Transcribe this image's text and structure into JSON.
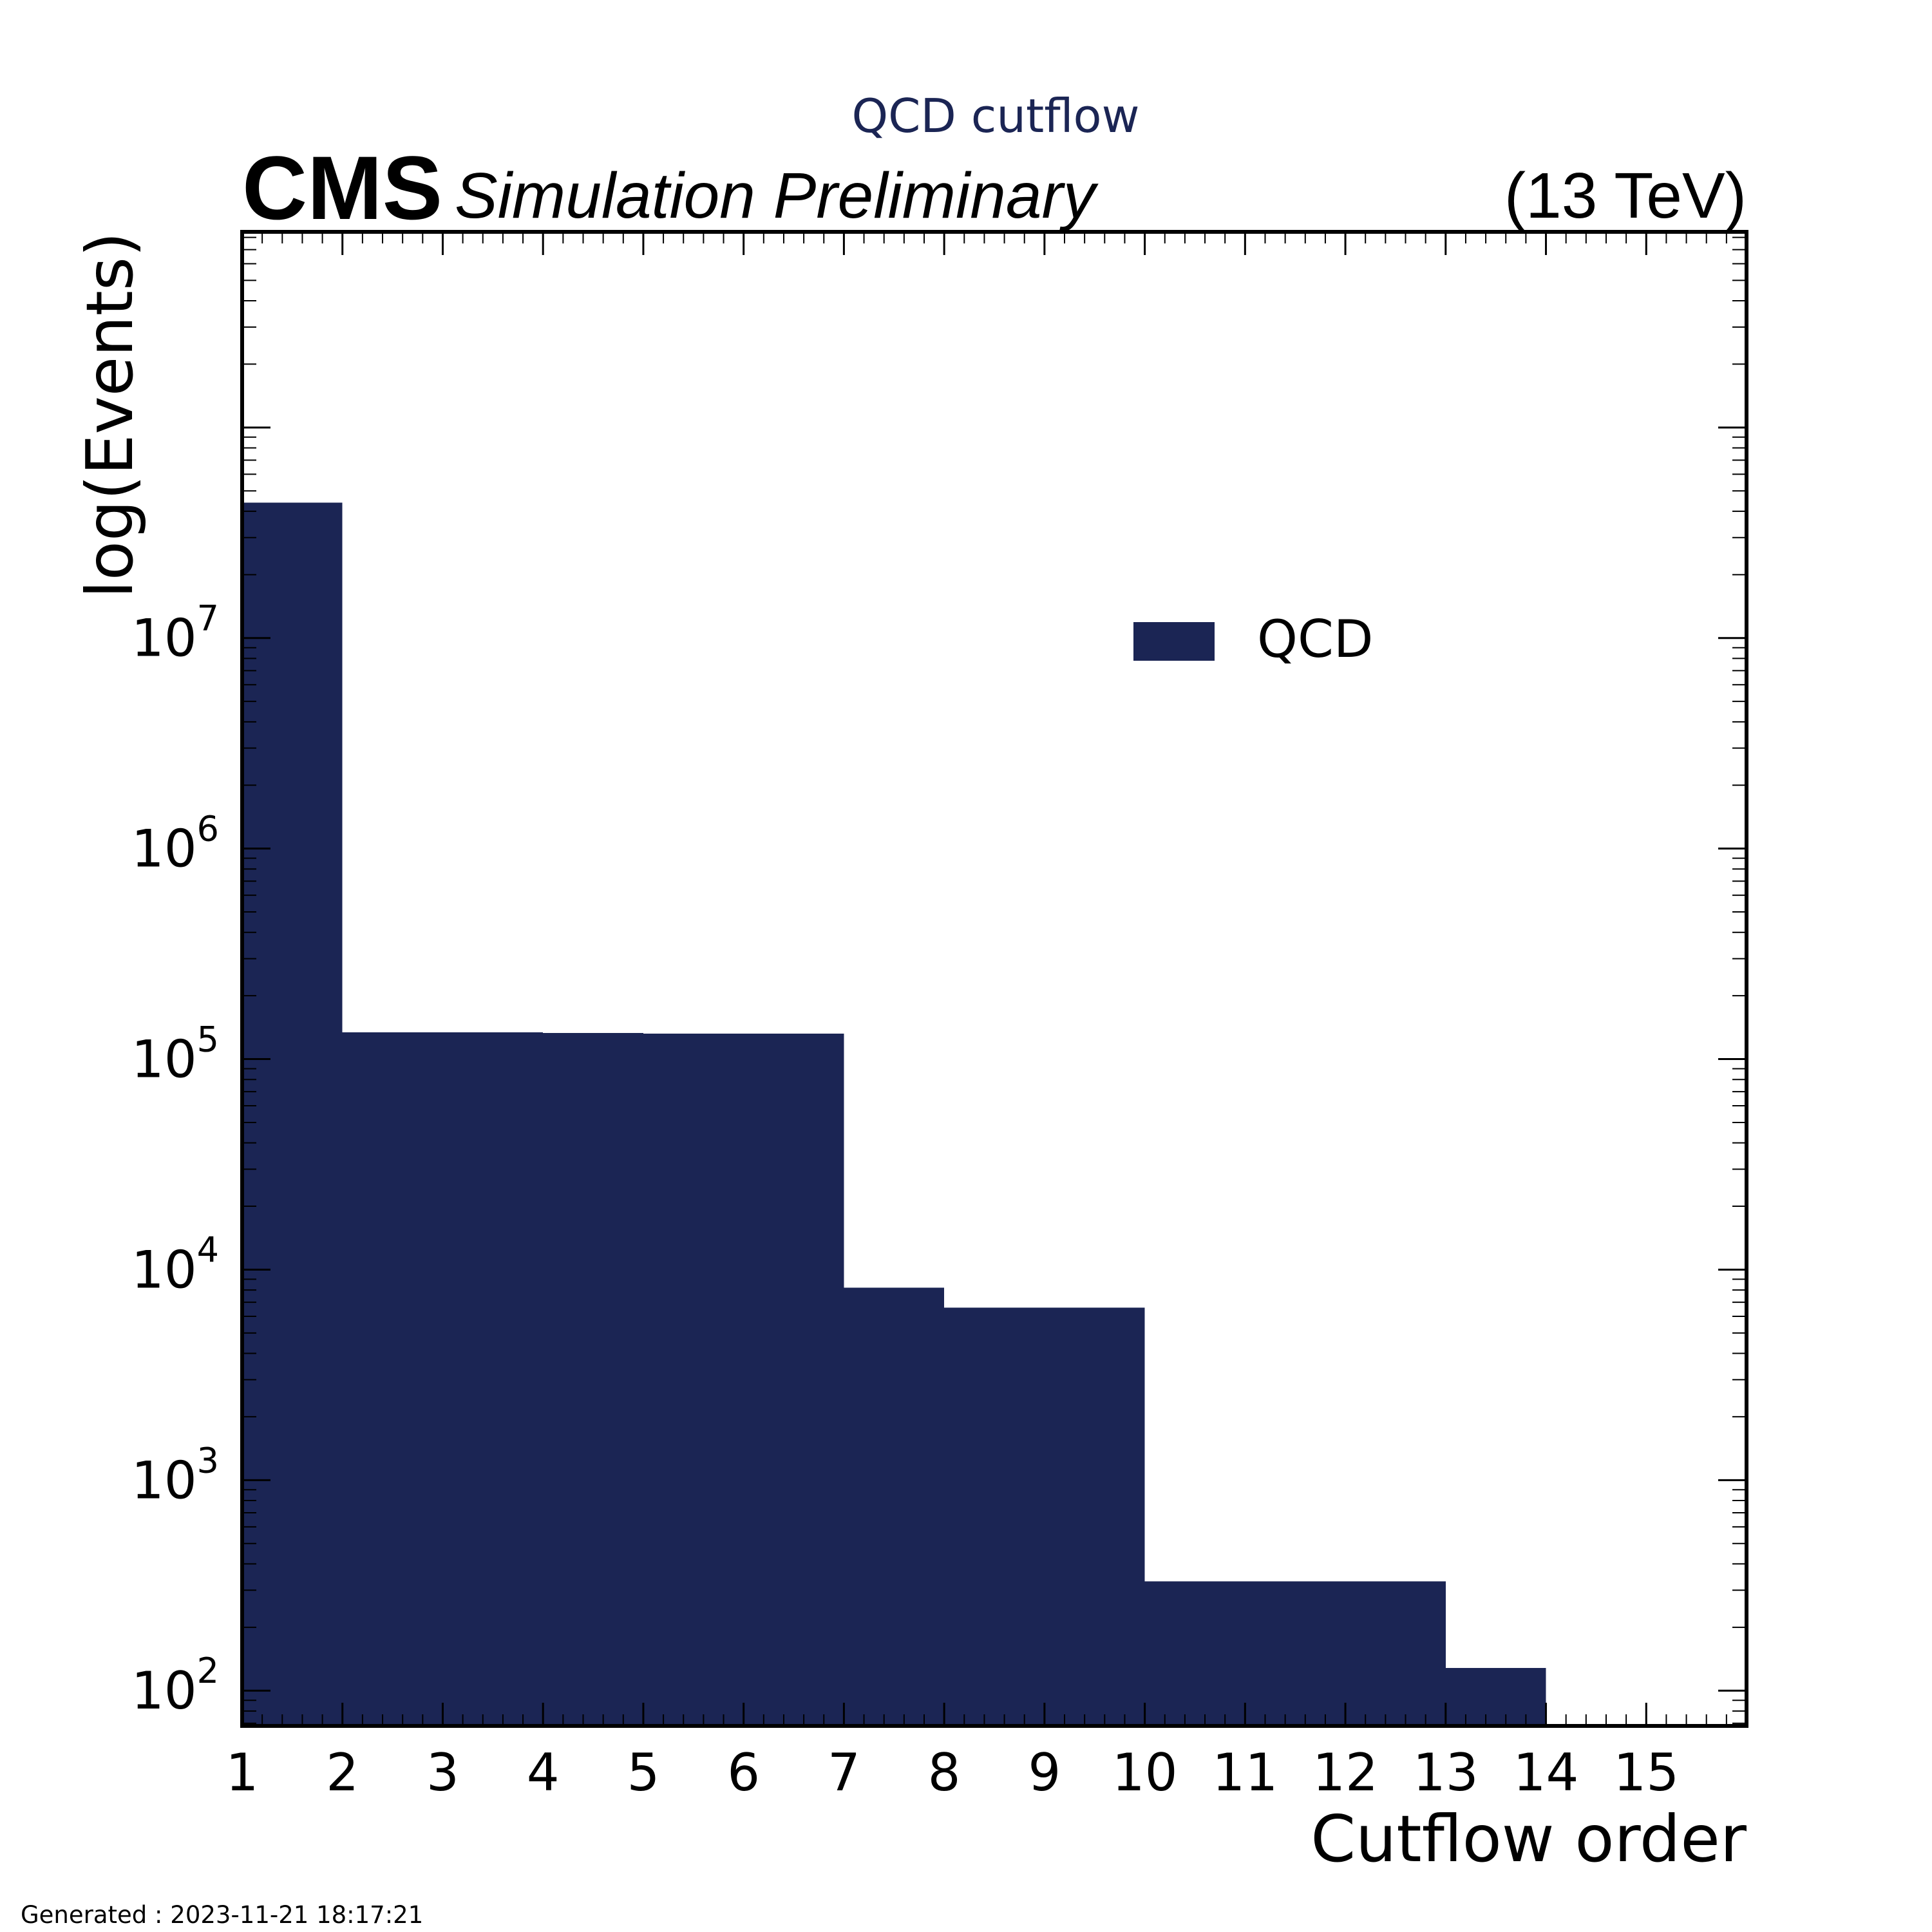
{
  "header": {
    "title": "QCD cutflow",
    "experiment": "CMS",
    "status": "Simulation Preliminary",
    "energy": "(13 TeV)"
  },
  "footer": {
    "generated": "Generated : 2023-11-21 18:17:21"
  },
  "legend": {
    "placement": "upper-center-right",
    "entries": [
      {
        "label": "QCD",
        "color": "#1b2554"
      }
    ]
  },
  "chart_data": {
    "type": "bar",
    "histogram": true,
    "title": "QCD cutflow",
    "xlabel": "Cutflow order",
    "ylabel": "log(Events)",
    "yscale": "log",
    "xlim": [
      1,
      16
    ],
    "ylim": [
      68,
      850000000
    ],
    "grid": false,
    "x_ticks": [
      "1",
      "2",
      "3",
      "4",
      "5",
      "6",
      "7",
      "8",
      "9",
      "10",
      "11",
      "12",
      "13",
      "14",
      "15"
    ],
    "y_ticks": [
      {
        "value": 100,
        "base": "10",
        "exp": "2"
      },
      {
        "value": 1000,
        "base": "10",
        "exp": "3"
      },
      {
        "value": 10000,
        "base": "10",
        "exp": "4"
      },
      {
        "value": 100000,
        "base": "10",
        "exp": "5"
      },
      {
        "value": 1000000,
        "base": "10",
        "exp": "6"
      },
      {
        "value": 10000000,
        "base": "10",
        "exp": "7"
      }
    ],
    "bin_edges": [
      1,
      2,
      3,
      4,
      5,
      6,
      7,
      8,
      9,
      10,
      11,
      12,
      13,
      14,
      15,
      16
    ],
    "series": [
      {
        "name": "QCD",
        "color": "#1b2554",
        "values": [
          44000000,
          134000,
          134000,
          133000,
          132000,
          132000,
          8200,
          6600,
          6600,
          330,
          330,
          330,
          128,
          0,
          0
        ]
      }
    ]
  }
}
